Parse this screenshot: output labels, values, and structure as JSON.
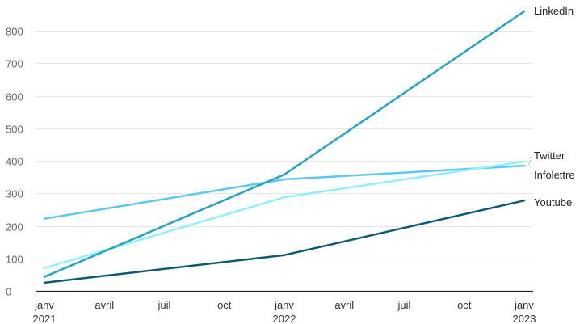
{
  "chart_data": {
    "type": "line",
    "x": [
      "2021-01",
      "2022-01",
      "2023-01"
    ],
    "x_tick_labels": [
      {
        "date": "2021-01",
        "line1": "janv",
        "line2": "2021"
      },
      {
        "date": "2021-04",
        "line1": "avril",
        "line2": ""
      },
      {
        "date": "2021-07",
        "line1": "juil",
        "line2": ""
      },
      {
        "date": "2021-10",
        "line1": "oct",
        "line2": ""
      },
      {
        "date": "2022-01",
        "line1": "janv",
        "line2": "2022"
      },
      {
        "date": "2022-04",
        "line1": "avril",
        "line2": ""
      },
      {
        "date": "2022-07",
        "line1": "juil",
        "line2": ""
      },
      {
        "date": "2022-10",
        "line1": "oct",
        "line2": ""
      },
      {
        "date": "2023-01",
        "line1": "janv",
        "line2": "2023"
      }
    ],
    "y_ticks": [
      0,
      100,
      200,
      300,
      400,
      500,
      600,
      700,
      800
    ],
    "ylim": [
      0,
      860
    ],
    "grid": true,
    "legend": "direct labels at line ends",
    "series": [
      {
        "name": "Twitter",
        "values": [
          222,
          343,
          385
        ],
        "color": "#5bc8f0"
      },
      {
        "name": "Infolettre",
        "values": [
          70,
          288,
          398
        ],
        "color": "#8ef0fb"
      },
      {
        "name": "LinkedIn",
        "values": [
          43,
          358,
          860
        ],
        "color": "#23a3c9"
      },
      {
        "name": "Youtube",
        "values": [
          25,
          110,
          278
        ],
        "color": "#0b5a78"
      }
    ],
    "end_labels": [
      {
        "text": "LinkedIn"
      },
      {
        "text": "Twitter"
      },
      {
        "text": "Infolettre"
      },
      {
        "text": "Youtube"
      }
    ]
  }
}
